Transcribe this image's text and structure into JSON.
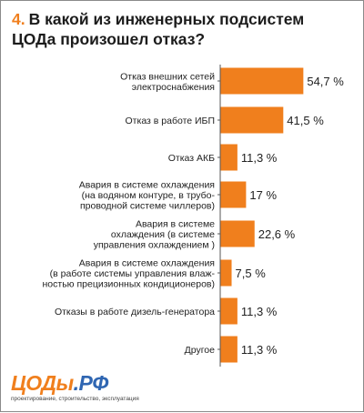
{
  "question": {
    "number": "4.",
    "text": "В какой из инженерных подсистем ЦОДа произошел отказ?"
  },
  "chart_data": {
    "type": "bar",
    "orientation": "horizontal",
    "categories": [
      [
        "Отказ внешних сетей",
        "электроснабжения"
      ],
      [
        "Отказ в работе ИБП"
      ],
      [
        "Отказ АКБ"
      ],
      [
        "Авария в системе охлаждения",
        "(на водяном контуре, в трубо-",
        "проводной системе чиллеров)"
      ],
      [
        "Авария в системе",
        "охлаждения (в системе",
        "управления охлаждением )"
      ],
      [
        "Авария в системе охлаждения",
        "(в работе системы управления влаж-",
        "ностью прецизионных кондиционеров)"
      ],
      [
        "Отказы в работе дизель-генератора"
      ],
      [
        "Другое"
      ]
    ],
    "values": [
      54.7,
      41.5,
      11.3,
      17,
      22.6,
      7.5,
      11.3,
      11.3
    ],
    "value_labels": [
      "54,7 %",
      "41,5 %",
      "11,3 %",
      "17 %",
      "22,6 %",
      "7,5 %",
      "11,3 %",
      "11,3 %"
    ],
    "bar_color": "#f07f1d",
    "axis_color": "#555555",
    "grid": false,
    "legend": "none"
  },
  "logo": {
    "part1": "ЦОДы",
    "part2": ".РФ",
    "tagline": "проектирование, строительство, эксплуатация"
  }
}
